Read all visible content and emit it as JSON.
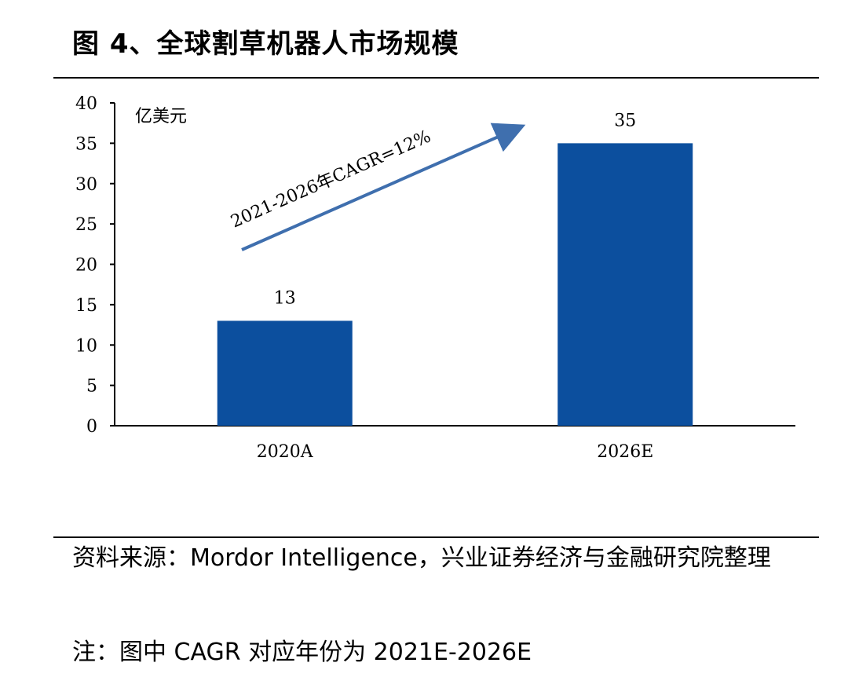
{
  "figure": {
    "title": "图 4、全球割草机器人市场规模"
  },
  "chart_data": {
    "type": "bar",
    "unit_label": "亿美元",
    "categories": [
      "2020A",
      "2026E"
    ],
    "values": [
      13,
      35
    ],
    "data_labels": [
      "13",
      "35"
    ],
    "ylim": [
      0,
      40
    ],
    "yticks": [
      0,
      5,
      10,
      15,
      20,
      25,
      30,
      35,
      40
    ],
    "grid": false,
    "bar_color": "#0c4f9e",
    "annotation": {
      "text": "2021-2026年CAGR=12%",
      "arrow_color": "#3f6fae"
    }
  },
  "footer": {
    "source": "资料来源：Mordor Intelligence，兴业证券经济与金融研究院整理",
    "note": "注：图中 CAGR 对应年份为 2021E-2026E"
  }
}
